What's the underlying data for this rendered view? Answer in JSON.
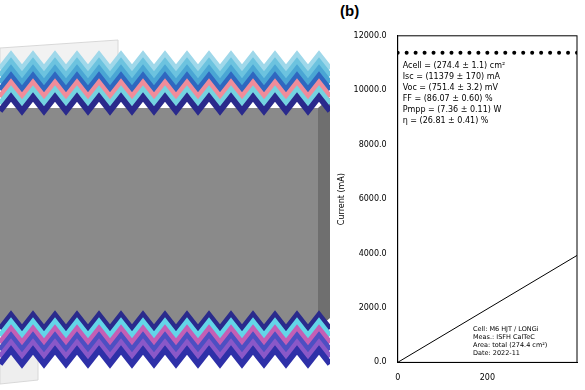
{
  "panel_label": "(b)",
  "chart_data": {
    "type": "scatter",
    "y_label": "Current (mA)",
    "xlim": [
      0,
      400
    ],
    "xticks": [
      0,
      200
    ],
    "ylim": [
      0,
      12000
    ],
    "yticks": [
      {
        "value": 0,
        "label": "0.0"
      },
      {
        "value": 2000,
        "label": "2000.0"
      },
      {
        "value": 4000,
        "label": "4000.0"
      },
      {
        "value": 6000,
        "label": "6000.0"
      },
      {
        "value": 8000,
        "label": "8000.0"
      },
      {
        "value": 10000,
        "label": "10000.0"
      },
      {
        "value": 12000,
        "label": "12000.0"
      }
    ],
    "grid": false,
    "annotations": [
      "Acell = (274.4 ± 1.1) cm²",
      "Isc = (11379 ± 170) mA",
      "Voc = (751.4 ± 3.2) mV",
      "FF = (86.07 ± 0.60) %",
      "Pmpp = (7.36 ± 0.11) W",
      "η = (26.81 ± 0.41) %"
    ],
    "footnote": [
      "Cell: M6 HJT / LONGi",
      "Meas.: ISFH CalTeC",
      "Area: total (274.4 cm²)",
      "Date: 2022-11"
    ],
    "series": [
      {
        "type": "scatter",
        "marker": "circle",
        "color": "#000000",
        "x": [
          0,
          20,
          40,
          60,
          80,
          100,
          120,
          140,
          160,
          180,
          200,
          220,
          240,
          260,
          280,
          300,
          320,
          340,
          360,
          380,
          400
        ],
        "values": [
          11380,
          11380,
          11380,
          11380,
          11380,
          11380,
          11380,
          11380,
          11380,
          11380,
          11380,
          11380,
          11380,
          11380,
          11380,
          11380,
          11380,
          11380,
          11380,
          11380,
          11380
        ]
      },
      {
        "type": "line",
        "line_style": "solid",
        "color": "#000000",
        "x": [
          0,
          400
        ],
        "values": [
          0,
          3930
        ]
      }
    ]
  }
}
